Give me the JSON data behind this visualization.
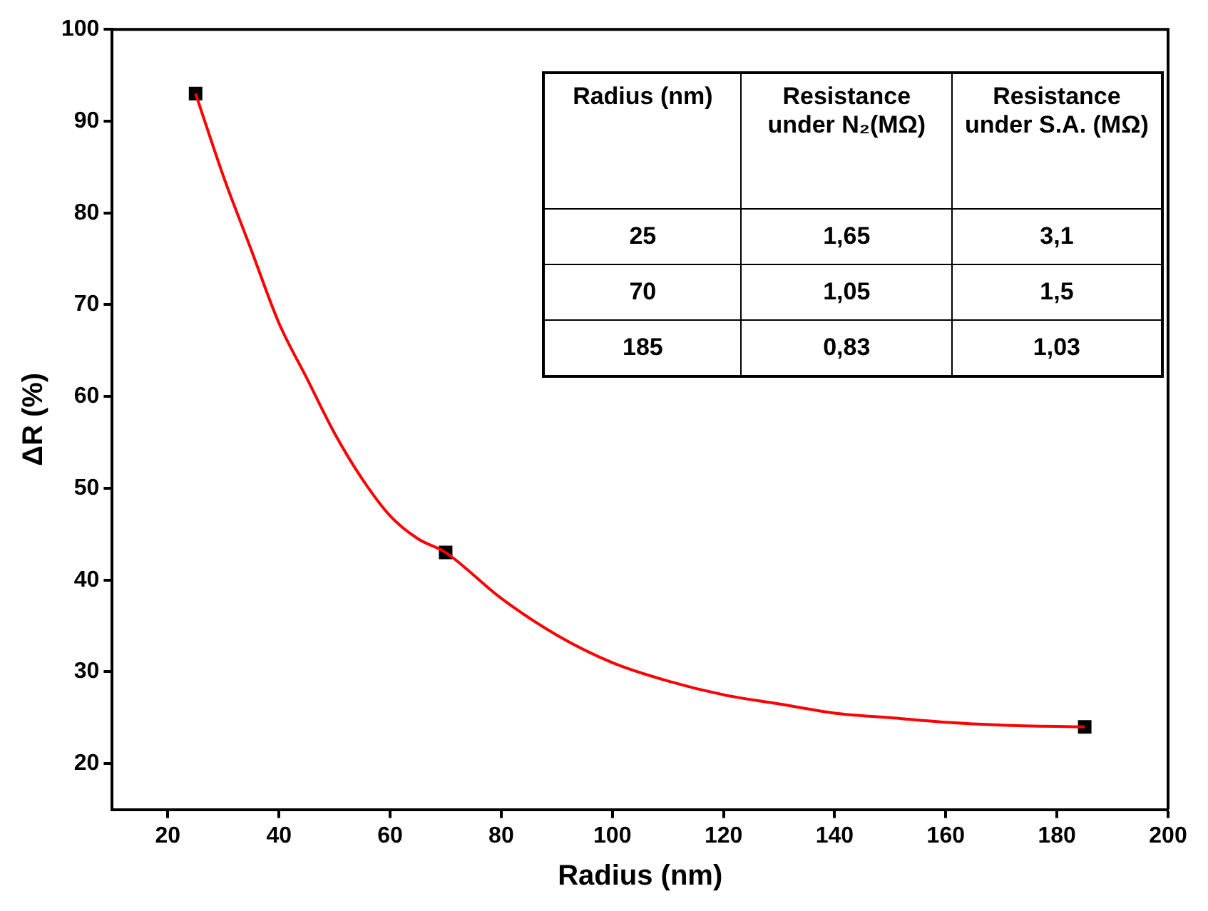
{
  "chart_data": {
    "type": "scatter",
    "xlabel": "Radius (nm)",
    "ylabel": "ΔR (%)",
    "xlim": [
      10,
      200
    ],
    "xticks": [
      20,
      40,
      60,
      80,
      100,
      120,
      140,
      160,
      180,
      200
    ],
    "ylim": [
      15,
      100
    ],
    "yticks": [
      20,
      30,
      40,
      50,
      60,
      70,
      80,
      90,
      100
    ],
    "grid": false,
    "legend": false,
    "marker": "square",
    "series": [
      {
        "type": "line",
        "color": "#ff0000",
        "marker": "none",
        "x": [
          25,
          30,
          35,
          40,
          45,
          50,
          55,
          60,
          65,
          70,
          80,
          90,
          100,
          110,
          120,
          130,
          140,
          150,
          160,
          170,
          185
        ],
        "values": [
          93,
          84,
          76,
          68,
          62,
          56,
          51,
          47,
          44.5,
          43,
          38,
          34,
          31,
          29,
          27.5,
          26.5,
          25.5,
          25,
          24.5,
          24.2,
          24
        ]
      },
      {
        "color": "#000000",
        "x": [
          25,
          70,
          185
        ],
        "values": [
          93,
          43,
          24
        ]
      }
    ],
    "annotations": [
      "Radius (nm)",
      "Resistance under N₂(MΩ)",
      "Resistance under S.A. (MΩ)",
      "25",
      "1,65",
      "3,1",
      "70",
      "1,05",
      "1,5",
      "185",
      "0,83",
      "1,03"
    ]
  }
}
